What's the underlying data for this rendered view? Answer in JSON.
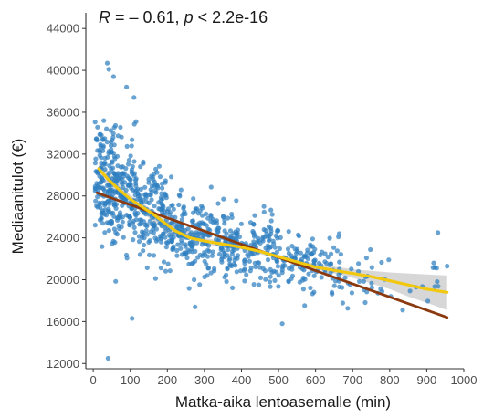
{
  "chart_data": {
    "type": "scatter",
    "xlabel": "Matka-aika lentoasemalle (min)",
    "ylabel": "Mediaanitulot (€)",
    "annotation": {
      "r_symbol": "R",
      "r_value": " = – 0.61, ",
      "p_symbol": "p",
      "p_value": " < 2.2e-16"
    },
    "xlim": [
      -20,
      1000
    ],
    "ylim": [
      11500,
      45500
    ],
    "x_ticks": [
      0,
      100,
      200,
      300,
      400,
      500,
      600,
      700,
      800,
      900,
      1000
    ],
    "y_ticks": [
      12000,
      16000,
      20000,
      24000,
      28000,
      32000,
      36000,
      40000,
      44000
    ],
    "grid": false,
    "colors": {
      "points": "#2f7fc1",
      "linear_fit": "#8b3a0f",
      "loess_fit": "#f2c80f",
      "ci_band": "#bdbdbd",
      "axis": "#333333"
    },
    "linear_fit": {
      "x": [
        10,
        955
      ],
      "y": [
        28300,
        16400
      ]
    },
    "loess_fit": {
      "x": [
        15,
        40,
        70,
        100,
        130,
        160,
        190,
        220,
        260,
        300,
        350,
        400,
        450,
        500,
        550,
        600,
        650,
        700,
        750,
        800,
        850,
        900,
        955
      ],
      "y": [
        30600,
        29600,
        28600,
        27700,
        27000,
        26300,
        25500,
        24700,
        24000,
        23700,
        23400,
        23100,
        22700,
        22200,
        21700,
        21200,
        20900,
        20600,
        20300,
        19900,
        19500,
        19100,
        18800
      ]
    },
    "ci_band": {
      "x": [
        15,
        100,
        200,
        300,
        400,
        500,
        600,
        700,
        800,
        850,
        900,
        955
      ],
      "lower": [
        29900,
        27300,
        24500,
        23400,
        22900,
        22000,
        21000,
        20200,
        19100,
        18400,
        17800,
        17100
      ],
      "upper": [
        31300,
        28100,
        25700,
        24000,
        23300,
        22400,
        21500,
        21000,
        20700,
        20600,
        20500,
        20400
      ]
    },
    "points_note": "approx. 1000 points, read as clusters",
    "point_clusters": [
      {
        "x_range": [
          5,
          60
        ],
        "y_mean": 29500,
        "y_sd": 3500,
        "n": 170
      },
      {
        "x_range": [
          60,
          120
        ],
        "y_mean": 28200,
        "y_sd": 3200,
        "n": 130
      },
      {
        "x_range": [
          120,
          200
        ],
        "y_mean": 26200,
        "y_sd": 2800,
        "n": 150
      },
      {
        "x_range": [
          200,
          300
        ],
        "y_mean": 24300,
        "y_sd": 2400,
        "n": 150
      },
      {
        "x_range": [
          300,
          400
        ],
        "y_mean": 23400,
        "y_sd": 2300,
        "n": 130
      },
      {
        "x_range": [
          400,
          500
        ],
        "y_mean": 22800,
        "y_sd": 2200,
        "n": 110
      },
      {
        "x_range": [
          500,
          600
        ],
        "y_mean": 21800,
        "y_sd": 2000,
        "n": 80
      },
      {
        "x_range": [
          600,
          700
        ],
        "y_mean": 21000,
        "y_sd": 1900,
        "n": 45
      },
      {
        "x_range": [
          700,
          800
        ],
        "y_mean": 20400,
        "y_sd": 1800,
        "n": 20
      },
      {
        "x_range": [
          800,
          960
        ],
        "y_mean": 19800,
        "y_sd": 1800,
        "n": 12
      }
    ],
    "outliers": [
      {
        "x": 40,
        "y": 12500
      },
      {
        "x": 38,
        "y": 40700
      },
      {
        "x": 42,
        "y": 40100
      },
      {
        "x": 55,
        "y": 39400
      },
      {
        "x": 110,
        "y": 37400
      },
      {
        "x": 90,
        "y": 38400
      },
      {
        "x": 105,
        "y": 16300
      },
      {
        "x": 275,
        "y": 17400
      },
      {
        "x": 510,
        "y": 15800
      },
      {
        "x": 835,
        "y": 17100
      },
      {
        "x": 930,
        "y": 24500
      },
      {
        "x": 955,
        "y": 21300
      }
    ]
  }
}
